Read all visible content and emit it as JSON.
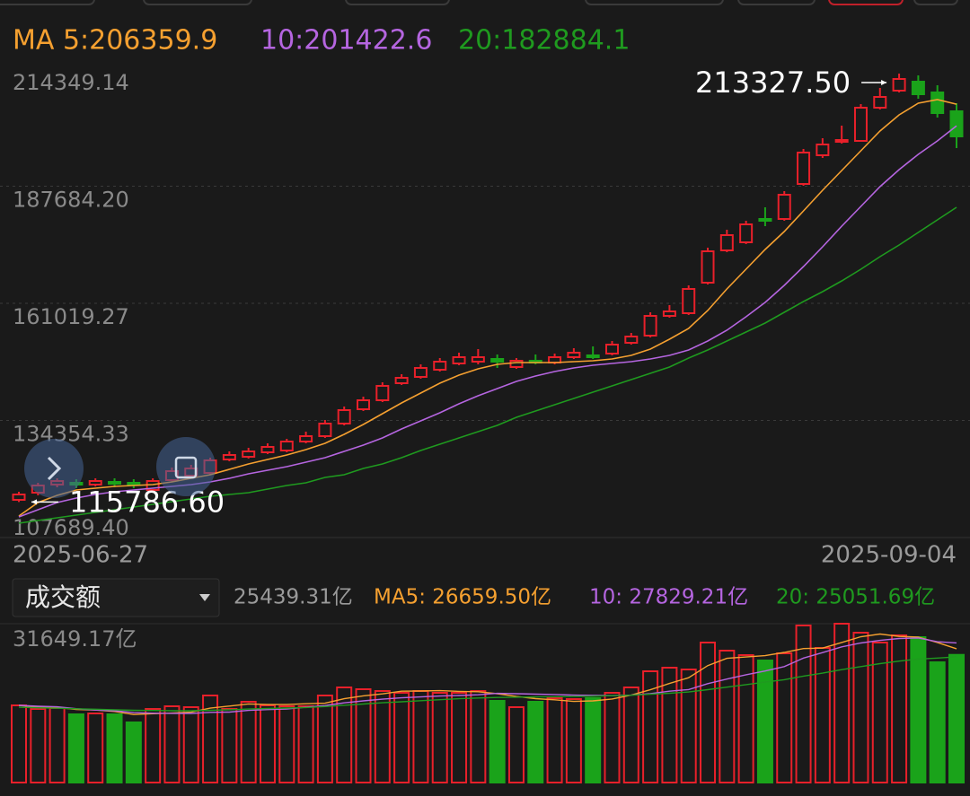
{
  "chart_data": {
    "type": "candlestick",
    "categories": [
      "2025-06-27",
      null,
      null,
      null,
      null,
      null,
      null,
      null,
      null,
      null,
      null,
      null,
      null,
      null,
      null,
      null,
      null,
      null,
      null,
      null,
      null,
      null,
      null,
      null,
      null,
      null,
      null,
      null,
      null,
      null,
      null,
      null,
      null,
      null,
      null,
      null,
      null,
      null,
      null,
      null,
      null,
      null,
      null,
      null,
      null,
      null,
      null,
      null,
      null,
      "2025-09-04"
    ],
    "open": [
      116271,
      117905,
      119744,
      120153,
      119744,
      120357,
      120153,
      118518,
      120766,
      121788,
      122400,
      125465,
      126078,
      127100,
      127509,
      129552,
      130778,
      133639,
      136908,
      138951,
      142833,
      144264,
      145898,
      147329,
      147737,
      148350,
      146511,
      147942,
      147533,
      148759,
      149168,
      149576,
      152028,
      153663,
      158158,
      158771,
      165718,
      173074,
      174913,
      180226,
      180226,
      188195,
      194733,
      197798,
      198003,
      205563,
      209445,
      211488,
      209036,
      204745
    ],
    "high": [
      118110,
      120153,
      121175,
      120970,
      121175,
      121175,
      120970,
      121175,
      123626,
      124239,
      125874,
      127304,
      128122,
      129143,
      130165,
      131800,
      134456,
      137521,
      139769,
      143038,
      144877,
      147124,
      148555,
      149781,
      150598,
      149372,
      148555,
      149372,
      149576,
      150802,
      151211,
      152437,
      154276,
      158976,
      160610,
      165105,
      173687,
      177774,
      179817,
      182882,
      186560,
      196164,
      198616,
      201476,
      206380,
      210058,
      213327.5,
      212919,
      210671,
      206584
    ],
    "low": [
      115786.6,
      117292,
      119131,
      118927,
      119336,
      119131,
      118927,
      118110,
      120357,
      121175,
      121992,
      125057,
      125670,
      126691,
      127100,
      129143,
      130369,
      133230,
      136499,
      138543,
      142425,
      143855,
      145490,
      146920,
      147124,
      146307,
      146103,
      147124,
      147124,
      148350,
      148350,
      149168,
      151620,
      153254,
      157750,
      158363,
      165310,
      172666,
      174505,
      178591,
      179817,
      187786,
      194120,
      197390,
      197798,
      205154,
      209036,
      207606,
      203315,
      196368
    ],
    "close": [
      117497,
      119540,
      120561,
      119744,
      120561,
      119949,
      119744,
      120561,
      122809,
      123422,
      125261,
      126487,
      127304,
      128326,
      129552,
      130778,
      133639,
      136704,
      138951,
      142221,
      144059,
      146307,
      147737,
      148759,
      148759,
      147737,
      147942,
      147533,
      148759,
      149781,
      148759,
      151620,
      153459,
      158158,
      159180,
      164288,
      172870,
      176548,
      179000,
      179817,
      185743,
      195346,
      197185,
      198207,
      205563,
      208015,
      212101,
      208628,
      204337,
      199024
    ],
    "up_color": "#e8202a",
    "down_color": "#1aa31a",
    "ylim": [
      107689.4,
      214349.14
    ],
    "yticks": [
      214349.14,
      {
        "value": 187684.2,
        "label": "187684.20"
      },
      161019.27,
      134354.33,
      {
        "value": 107689.4,
        "label": "107689.40"
      }
    ],
    "grid": true,
    "annotations": [
      {
        "label": "213327.50",
        "value": 213327.5
      },
      {
        "label": "115786.60",
        "value": 115786.6
      }
    ],
    "series": [
      {
        "label": "MA 5:206359.9",
        "color": "#f5a030",
        "values": [
          112593,
          115658,
          117292,
          118518,
          118927,
          119336,
          119540,
          119744,
          120357,
          121175,
          121992,
          123218,
          124444,
          125465,
          126487,
          127713,
          129143,
          131187,
          133434,
          135886,
          138338,
          140586,
          142833,
          144672,
          146103,
          147124,
          147533,
          147533,
          147533,
          147737,
          147942,
          148350,
          149168,
          150598,
          152846,
          155298,
          159384,
          164288,
          168783,
          173279,
          177365,
          182065,
          186764,
          191260,
          195755,
          200250,
          203928,
          206584,
          207402,
          206359.9
        ]
      },
      {
        "label": "10:201422.6",
        "color": "#b565e0",
        "values": [
          112388,
          114023,
          115658,
          116679,
          117497,
          118110,
          118518,
          118927,
          119336,
          119744,
          120357,
          121175,
          122196,
          123013,
          123831,
          124852,
          125874,
          127304,
          128735,
          130369,
          132413,
          134252,
          136091,
          138134,
          139973,
          141608,
          143242,
          144468,
          145490,
          146307,
          146920,
          147329,
          147737,
          148350,
          149168,
          150394,
          152437,
          154889,
          157954,
          161223,
          165105,
          169396,
          173892,
          178591,
          183087,
          187582,
          191464,
          194938,
          198003,
          201422.6
        ]
      },
      {
        "label": "20:182884.1",
        "color": "#1f9a1f",
        "values": [
          110958,
          111571,
          112184,
          112797,
          113410,
          114023,
          114636,
          115249,
          115862,
          116475,
          117088,
          117497,
          117905,
          118723,
          119540,
          120153,
          121379,
          121992,
          123422,
          124444,
          125874,
          127509,
          128939,
          130369,
          131800,
          133230,
          135069,
          136499,
          137930,
          139360,
          140790,
          142221,
          143651,
          145081,
          146511,
          148555,
          150394,
          152437,
          154480,
          156524,
          158976,
          161428,
          163675,
          166127,
          168783,
          171645,
          174300,
          177161,
          180022,
          182884.1
        ]
      }
    ],
    "volume": {
      "selector": "成交额",
      "current_label": "25439.31亿",
      "ylim": [
        0,
        31649.17
      ],
      "yticks": [
        {
          "value": 31649.17,
          "label": "31649.17亿"
        }
      ],
      "values": [
        15378,
        14662,
        14841,
        13590,
        13768,
        13590,
        11980,
        14662,
        15199,
        15020,
        17345,
        14662,
        16093,
        15378,
        15199,
        15199,
        17345,
        18954,
        18596,
        18239,
        17881,
        18239,
        17881,
        17881,
        18239,
        16272,
        15020,
        16093,
        16808,
        16629,
        16808,
        17881,
        18954,
        22173,
        22888,
        22530,
        27894,
        26285,
        25391,
        24318,
        25748,
        31300,
        26822,
        31649.17,
        29861,
        27894,
        29325,
        28967,
        23961,
        25439.31
      ],
      "series": [
        {
          "label": "MA5: 26659.50亿",
          "color": "#f5a030",
          "values": [
            15378,
            15020,
            14960,
            14580,
            14450,
            14170,
            13550,
            13720,
            13840,
            14020,
            14820,
            15230,
            15660,
            15540,
            15540,
            15700,
            15800,
            16700,
            17270,
            17670,
            18200,
            18240,
            18310,
            18170,
            18090,
            17710,
            17140,
            16710,
            16490,
            16160,
            16270,
            16640,
            17420,
            18490,
            19740,
            20890,
            23290,
            24750,
            25020,
            25280,
            25930,
            26690,
            26780,
            27910,
            29060,
            29600,
            29110,
            28980,
            27910,
            26659.5
          ]
        },
        {
          "label": "10: 27829.21亿",
          "color": "#b565e0",
          "values": [
            15378,
            15200,
            15090,
            14720,
            14450,
            14300,
            13930,
            13820,
            13780,
            13760,
            13990,
            14040,
            14370,
            14540,
            14660,
            15010,
            15340,
            15870,
            16270,
            16610,
            16880,
            17060,
            17240,
            17340,
            17480,
            17780,
            17700,
            17620,
            17540,
            17420,
            17350,
            17330,
            17410,
            17720,
            18210,
            18520,
            19710,
            20620,
            21470,
            22220,
            23100,
            24800,
            25890,
            27040,
            27800,
            28330,
            28700,
            28800,
            28050,
            27829.21
          ]
        },
        {
          "label": "20: 25051.69亿",
          "color": "#1f9a1f",
          "values": [
            15000,
            14900,
            14800,
            14700,
            14600,
            14500,
            14400,
            14350,
            14300,
            14300,
            14400,
            14500,
            14650,
            14750,
            14850,
            14950,
            15150,
            15400,
            15650,
            15900,
            16100,
            16300,
            16500,
            16700,
            16850,
            16950,
            17000,
            17050,
            17100,
            17150,
            17200,
            17300,
            17400,
            17600,
            17800,
            18050,
            18500,
            19000,
            19500,
            20000,
            20500,
            21200,
            21800,
            22500,
            23100,
            23700,
            24200,
            24600,
            24800,
            25051.69
          ]
        }
      ]
    }
  }
}
